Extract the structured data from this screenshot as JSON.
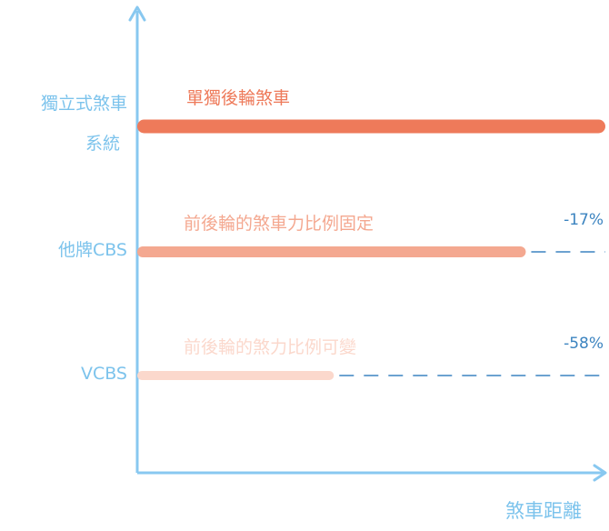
{
  "chart_data": {
    "type": "bar",
    "orientation": "horizontal",
    "xlabel": "煞車距離",
    "categories": [
      {
        "label_lines": [
          "獨立式煞車",
          "系統"
        ],
        "bar_label": "單獨後輪煞車",
        "value": 100,
        "reduction_label": "",
        "color": "#ee7a5a"
      },
      {
        "label_lines": [
          "他牌CBS"
        ],
        "bar_label": "前後輪的煞車力比例固定",
        "value": 83,
        "reduction_label": "-17%",
        "color": "#f4a890"
      },
      {
        "label_lines": [
          "VCBS"
        ],
        "bar_label": "前後輪的煞力比例可變",
        "value": 42,
        "reduction_label": "-58%",
        "color": "#fbd8cc"
      }
    ],
    "xlim": [
      0,
      100
    ],
    "grid": false,
    "legend": "none",
    "axis_color": "#88c8f0",
    "dash_color": "#3c84c0"
  }
}
